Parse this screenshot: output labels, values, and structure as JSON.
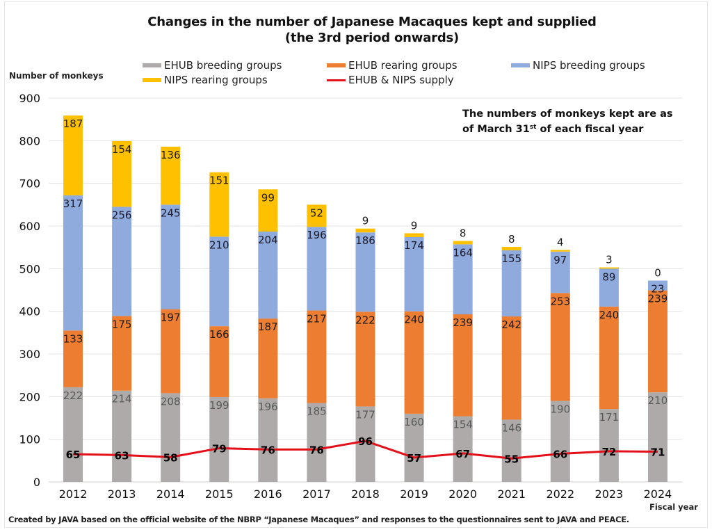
{
  "chart_data": {
    "type": "bar",
    "stacked": true,
    "title": "Changes in the number of Japanese Macaques kept and supplied",
    "subtitle": "(the 3rd period onwards)",
    "xlabel": "Fiscal year",
    "ylabel": "Number of monkeys",
    "ylim": [
      0,
      900
    ],
    "yticks": [
      0,
      100,
      200,
      300,
      400,
      500,
      600,
      700,
      800,
      900
    ],
    "grid": true,
    "legend_position": "top",
    "categories": [
      "2012",
      "2013",
      "2014",
      "2015",
      "2016",
      "2017",
      "2018",
      "2019",
      "2020",
      "2021",
      "2022",
      "2023",
      "2024"
    ],
    "series": [
      {
        "name": "EHUB breeding groups",
        "kind": "bar",
        "color": "#AEAAAA",
        "label_color": "#595959",
        "values": [
          222,
          214,
          208,
          199,
          196,
          185,
          177,
          160,
          154,
          146,
          190,
          171,
          210
        ]
      },
      {
        "name": "EHUB rearing groups",
        "kind": "bar",
        "color": "#ED7D31",
        "label_color": "#1a1a1a",
        "values": [
          133,
          175,
          197,
          166,
          187,
          217,
          222,
          240,
          239,
          242,
          253,
          240,
          239
        ]
      },
      {
        "name": "NIPS breeding groups",
        "kind": "bar",
        "color": "#8FAADC",
        "label_color": "#1a1a2a",
        "values": [
          317,
          256,
          245,
          210,
          204,
          196,
          186,
          174,
          164,
          155,
          97,
          89,
          23
        ]
      },
      {
        "name": "NIPS rearing groups",
        "kind": "bar",
        "color": "#FFC000",
        "label_color": "#1a1a1a",
        "values": [
          187,
          154,
          136,
          151,
          99,
          52,
          9,
          9,
          8,
          8,
          4,
          3,
          0
        ]
      },
      {
        "name": "EHUB & NIPS supply",
        "kind": "line",
        "color": "#E3101A",
        "label_color": "#000000",
        "values": [
          65,
          63,
          58,
          79,
          76,
          76,
          96,
          57,
          67,
          55,
          66,
          72,
          71
        ]
      }
    ],
    "annotation": {
      "line1": "The numbers of monkeys kept are as",
      "line2_pre": "of March 31",
      "line2_sup": "st",
      "line2_post": " of each fiscal year"
    },
    "source_note": "Created by JAVA based on the official website of the NBRP “Japanese Macaques” and responses to the questionnaires sent to JAVA and PEACE."
  }
}
